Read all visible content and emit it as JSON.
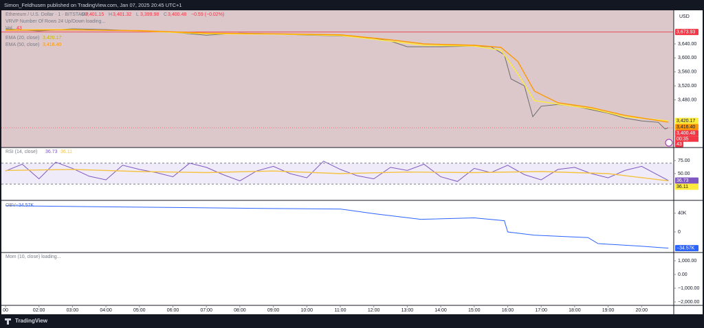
{
  "header": {
    "text": "Simon_Feldhusen published on TradingView.com, Jan 07, 2025 20:45 UTC+1"
  },
  "currency": "USD",
  "time_axis": {
    "xlim": [
      1,
      20.96
    ],
    "xticks": [
      {
        "value": 1,
        "label": "00"
      },
      {
        "value": 2,
        "label": "02:00"
      },
      {
        "value": 3,
        "label": "03:00"
      },
      {
        "value": 4,
        "label": "04:00"
      },
      {
        "value": 5,
        "label": "05:00"
      },
      {
        "value": 6,
        "label": "06:00"
      },
      {
        "value": 7,
        "label": "07:00"
      },
      {
        "value": 8,
        "label": "08:00"
      },
      {
        "value": 9,
        "label": "09:00"
      },
      {
        "value": 10,
        "label": "10:00"
      },
      {
        "value": 11,
        "label": "11:00"
      },
      {
        "value": 12,
        "label": "12:00"
      },
      {
        "value": 13,
        "label": "13:00"
      },
      {
        "value": 14,
        "label": "14:00"
      },
      {
        "value": 15,
        "label": "15:00"
      },
      {
        "value": 16,
        "label": "16:00"
      },
      {
        "value": 17,
        "label": "17:00"
      },
      {
        "value": 18,
        "label": "18:00"
      },
      {
        "value": 19,
        "label": "19:00"
      },
      {
        "value": 20,
        "label": "20:00"
      }
    ]
  },
  "chart_data": [
    {
      "type": "line",
      "ohlc": [
        {
          "name": "O",
          "value": 3401.15,
          "label": "3,401.15"
        },
        {
          "name": "H",
          "value": 3401.32,
          "label": "3,401.32"
        },
        {
          "name": "L",
          "value": 3399.98,
          "label": "3,399.98"
        },
        {
          "name": "C",
          "value": 3400.48,
          "label": "3,400.48"
        }
      ],
      "change": {
        "value": -0.59,
        "label": "−0.59 (−0.02%)"
      },
      "indicators": [
        "VRVP Number Of Rows 24 Up/Down loading..."
      ],
      "volume": {
        "name": "Vol",
        "value": 43
      },
      "ylim": [
        3344,
        3736
      ],
      "yticks": [
        {
          "value": 3640,
          "label": "3,640.00"
        },
        {
          "value": 3600,
          "label": "3,600.00"
        },
        {
          "value": 3560,
          "label": "3,560.00"
        },
        {
          "value": 3520,
          "label": "3,520.00"
        },
        {
          "value": 3480,
          "label": "3,480.00"
        }
      ],
      "high": {
        "value": 3673.93,
        "label": "3,673.93"
      },
      "countdown": "00:35",
      "series": [
        {
          "name": "Ethereum / U.S. Dollar · 1 · BITSTAMP",
          "color": "#6b6b6b",
          "last_color": "#f23645",
          "x": [
            1,
            2,
            3,
            4,
            5,
            6,
            7,
            8,
            9,
            10,
            11,
            12,
            12.5,
            13,
            14,
            15,
            15.5,
            15.9,
            16.1,
            16.5,
            16.75,
            17,
            17.5,
            18,
            18.5,
            19,
            19.5,
            20,
            20.5,
            20.7,
            20.8
          ],
          "values": [
            3683,
            3677,
            3683,
            3681,
            3677,
            3673,
            3665,
            3671,
            3669,
            3665,
            3663,
            3656,
            3648,
            3632,
            3632,
            3634,
            3632,
            3609,
            3540,
            3520,
            3432,
            3462,
            3467,
            3462,
            3452,
            3442,
            3428,
            3420,
            3416,
            3397,
            3400.48
          ],
          "last": {
            "value": 3400.48,
            "label": "3,400.48"
          }
        },
        {
          "name": "EMA (20, close)",
          "color": "#ffeb3b",
          "last_color": "#ffeb3b",
          "x": [
            1,
            3,
            5,
            7,
            9,
            11,
            12.5,
            13.5,
            15,
            15.8,
            16.3,
            16.8,
            17.5,
            18.5,
            19.5,
            20.8
          ],
          "values": [
            3680,
            3681,
            3677,
            3669,
            3668,
            3664,
            3648,
            3636,
            3634,
            3622,
            3555,
            3478,
            3468,
            3455,
            3432,
            3420.17
          ],
          "last": {
            "value": 3420.17,
            "label": "3,420.17"
          }
        },
        {
          "name": "EMA (50, close)",
          "color": "#ff9800",
          "last_color": "#ff9800",
          "x": [
            1,
            3,
            5,
            7,
            9,
            11,
            12.5,
            13.5,
            15,
            15.8,
            16.3,
            16.8,
            17.5,
            18.5,
            19.5,
            20.8
          ],
          "values": [
            3679,
            3680,
            3678,
            3671,
            3669,
            3666,
            3652,
            3640,
            3636,
            3630,
            3590,
            3505,
            3472,
            3458,
            3436,
            3416.4
          ],
          "last": {
            "value": 3416.4,
            "label": "3,416.40"
          }
        }
      ]
    },
    {
      "type": "line",
      "ylim": [
        0,
        100
      ],
      "yticks": [
        {
          "value": 75,
          "label": "75.00"
        },
        {
          "value": 50,
          "label": "50.00"
        }
      ],
      "bands": [
        70,
        30
      ],
      "series": [
        {
          "name": "RSI (14, close)",
          "color": "#7e57c2",
          "last_color": "#7e57c2",
          "x": [
            1,
            1.5,
            2,
            2.5,
            3,
            3.5,
            4,
            4.5,
            5,
            5.5,
            6,
            6.5,
            7,
            7.5,
            8,
            8.5,
            9,
            9.5,
            10,
            10.5,
            11,
            11.5,
            12,
            12.5,
            13,
            13.5,
            14,
            14.5,
            15,
            15.5,
            16,
            16.5,
            17,
            17.5,
            18,
            18.5,
            19,
            19.5,
            20,
            20.8
          ],
          "values": [
            55,
            68,
            40,
            72,
            60,
            45,
            38,
            66,
            58,
            52,
            44,
            70,
            62,
            48,
            36,
            55,
            64,
            50,
            42,
            74,
            58,
            46,
            40,
            62,
            56,
            68,
            44,
            35,
            60,
            52,
            66,
            48,
            38,
            58,
            62,
            50,
            42,
            56,
            64,
            36.73
          ],
          "last": {
            "value": 36.73,
            "label": "36.73"
          }
        },
        {
          "color": "#f5c242",
          "last_color": "#ffeb3b",
          "x": [
            1,
            3,
            5,
            7,
            9,
            11,
            13,
            15,
            17,
            19,
            20.8
          ],
          "values": [
            56,
            58,
            54,
            52,
            55,
            50,
            53,
            52,
            54,
            50,
            36.11
          ],
          "last": {
            "value": 36.11,
            "label": "36.11"
          }
        }
      ]
    },
    {
      "type": "line",
      "ylim": [
        -44000,
        66000
      ],
      "yticks": [
        {
          "value": 40000,
          "label": "40K"
        },
        0
      ],
      "series": [
        {
          "name": "OBV",
          "color": "#2962ff",
          "last_color": "#2962ff",
          "x": [
            1,
            5,
            9,
            11,
            12,
            13.4,
            15,
            15.9,
            16,
            16.8,
            18.4,
            18.7,
            19.9,
            20.8
          ],
          "values": [
            56000,
            53000,
            50000,
            49000,
            39000,
            27000,
            30000,
            24000,
            0,
            -7000,
            -12000,
            -25000,
            -30000,
            -34570
          ],
          "last": {
            "value": -34570,
            "label": "−34.57K"
          }
        }
      ]
    },
    {
      "type": "line",
      "title": "Mom (10, close) loading...",
      "ylim": [
        -2250,
        1600
      ],
      "yticks": [
        {
          "value": 1000,
          "label": "1,000.00"
        },
        {
          "value": 0,
          "label": "0.00"
        },
        {
          "value": -1000,
          "label": "−1,000.00"
        },
        {
          "value": -2000,
          "label": "−2,000.00"
        }
      ],
      "series": []
    }
  ],
  "footer": {
    "brand": "TradingView"
  }
}
